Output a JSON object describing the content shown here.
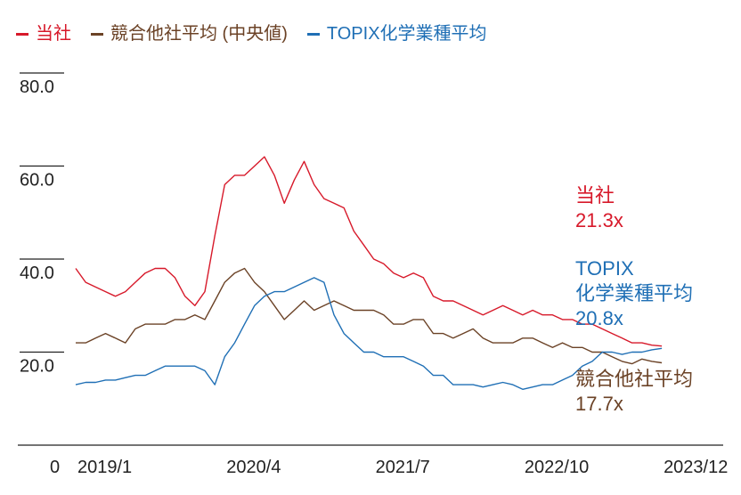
{
  "chart_data": {
    "type": "line",
    "legend": [
      {
        "name": "当社",
        "color": "#d7192a"
      },
      {
        "name": "競合他社平均 (中央値)",
        "color": "#6b4226"
      },
      {
        "name": "TOPIX化学業種平均",
        "color": "#1f6fb5"
      }
    ],
    "x_ticks": [
      "2019/1",
      "2020/4",
      "2021/7",
      "2022/10",
      "2023/12"
    ],
    "x_range": [
      "2019/1",
      "2024/6"
    ],
    "y_ticks": [
      "80.0",
      "60.0",
      "40.0",
      "20.0"
    ],
    "y_zero_label": "0",
    "ylim": [
      0,
      80
    ],
    "series": [
      {
        "name": "当社",
        "color": "#d7192a",
        "points": [
          [
            "2019-01",
            38
          ],
          [
            "2019-02",
            35
          ],
          [
            "2019-03",
            34
          ],
          [
            "2019-04",
            33
          ],
          [
            "2019-05",
            32
          ],
          [
            "2019-06",
            33
          ],
          [
            "2019-07",
            35
          ],
          [
            "2019-08",
            37
          ],
          [
            "2019-09",
            38
          ],
          [
            "2019-10",
            38
          ],
          [
            "2019-11",
            36
          ],
          [
            "2019-12",
            32
          ],
          [
            "2020-01",
            30
          ],
          [
            "2020-02",
            33
          ],
          [
            "2020-03",
            45
          ],
          [
            "2020-04",
            56
          ],
          [
            "2020-05",
            58
          ],
          [
            "2020-06",
            58
          ],
          [
            "2020-07",
            60
          ],
          [
            "2020-08",
            62
          ],
          [
            "2020-09",
            58
          ],
          [
            "2020-10",
            52
          ],
          [
            "2020-11",
            57
          ],
          [
            "2020-12",
            61
          ],
          [
            "2021-01",
            56
          ],
          [
            "2021-02",
            53
          ],
          [
            "2021-03",
            52
          ],
          [
            "2021-04",
            51
          ],
          [
            "2021-05",
            46
          ],
          [
            "2021-06",
            43
          ],
          [
            "2021-07",
            40
          ],
          [
            "2021-08",
            39
          ],
          [
            "2021-09",
            37
          ],
          [
            "2021-10",
            36
          ],
          [
            "2021-11",
            37
          ],
          [
            "2021-12",
            36
          ],
          [
            "2022-01",
            32
          ],
          [
            "2022-02",
            31
          ],
          [
            "2022-03",
            31
          ],
          [
            "2022-04",
            30
          ],
          [
            "2022-05",
            29
          ],
          [
            "2022-06",
            28
          ],
          [
            "2022-07",
            29
          ],
          [
            "2022-08",
            30
          ],
          [
            "2022-09",
            29
          ],
          [
            "2022-10",
            28
          ],
          [
            "2022-11",
            29
          ],
          [
            "2022-12",
            28
          ],
          [
            "2023-01",
            28
          ],
          [
            "2023-02",
            27
          ],
          [
            "2023-03",
            27
          ],
          [
            "2023-04",
            26
          ],
          [
            "2023-05",
            26
          ],
          [
            "2023-06",
            25
          ],
          [
            "2023-07",
            24
          ],
          [
            "2023-08",
            23
          ],
          [
            "2023-09",
            22
          ],
          [
            "2023-10",
            22
          ],
          [
            "2023-11",
            21.5
          ],
          [
            "2023-12",
            21.3
          ]
        ]
      },
      {
        "name": "競合他社平均 (中央値)",
        "color": "#6b4226",
        "points": [
          [
            "2019-01",
            22
          ],
          [
            "2019-02",
            22
          ],
          [
            "2019-03",
            23
          ],
          [
            "2019-04",
            24
          ],
          [
            "2019-05",
            23
          ],
          [
            "2019-06",
            22
          ],
          [
            "2019-07",
            25
          ],
          [
            "2019-08",
            26
          ],
          [
            "2019-09",
            26
          ],
          [
            "2019-10",
            26
          ],
          [
            "2019-11",
            27
          ],
          [
            "2019-12",
            27
          ],
          [
            "2020-01",
            28
          ],
          [
            "2020-02",
            27
          ],
          [
            "2020-03",
            31
          ],
          [
            "2020-04",
            35
          ],
          [
            "2020-05",
            37
          ],
          [
            "2020-06",
            38
          ],
          [
            "2020-07",
            35
          ],
          [
            "2020-08",
            33
          ],
          [
            "2020-09",
            30
          ],
          [
            "2020-10",
            27
          ],
          [
            "2020-11",
            29
          ],
          [
            "2020-12",
            31
          ],
          [
            "2021-01",
            29
          ],
          [
            "2021-02",
            30
          ],
          [
            "2021-03",
            31
          ],
          [
            "2021-04",
            30
          ],
          [
            "2021-05",
            29
          ],
          [
            "2021-06",
            29
          ],
          [
            "2021-07",
            29
          ],
          [
            "2021-08",
            28
          ],
          [
            "2021-09",
            26
          ],
          [
            "2021-10",
            26
          ],
          [
            "2021-11",
            27
          ],
          [
            "2021-12",
            27
          ],
          [
            "2022-01",
            24
          ],
          [
            "2022-02",
            24
          ],
          [
            "2022-03",
            23
          ],
          [
            "2022-04",
            24
          ],
          [
            "2022-05",
            25
          ],
          [
            "2022-06",
            23
          ],
          [
            "2022-07",
            22
          ],
          [
            "2022-08",
            22
          ],
          [
            "2022-09",
            22
          ],
          [
            "2022-10",
            23
          ],
          [
            "2022-11",
            23
          ],
          [
            "2022-12",
            22
          ],
          [
            "2023-01",
            21
          ],
          [
            "2023-02",
            22
          ],
          [
            "2023-03",
            21
          ],
          [
            "2023-04",
            21
          ],
          [
            "2023-05",
            20
          ],
          [
            "2023-06",
            20
          ],
          [
            "2023-07",
            19
          ],
          [
            "2023-08",
            18
          ],
          [
            "2023-09",
            17.5
          ],
          [
            "2023-10",
            18.5
          ],
          [
            "2023-11",
            18
          ],
          [
            "2023-12",
            17.7
          ]
        ]
      },
      {
        "name": "TOPIX化学業種平均",
        "color": "#1f6fb5",
        "points": [
          [
            "2019-01",
            13
          ],
          [
            "2019-02",
            13.5
          ],
          [
            "2019-03",
            13.5
          ],
          [
            "2019-04",
            14
          ],
          [
            "2019-05",
            14
          ],
          [
            "2019-06",
            14.5
          ],
          [
            "2019-07",
            15
          ],
          [
            "2019-08",
            15
          ],
          [
            "2019-09",
            16
          ],
          [
            "2019-10",
            17
          ],
          [
            "2019-11",
            17
          ],
          [
            "2019-12",
            17
          ],
          [
            "2020-01",
            17
          ],
          [
            "2020-02",
            16
          ],
          [
            "2020-03",
            13
          ],
          [
            "2020-04",
            19
          ],
          [
            "2020-05",
            22
          ],
          [
            "2020-06",
            26
          ],
          [
            "2020-07",
            30
          ],
          [
            "2020-08",
            32
          ],
          [
            "2020-09",
            33
          ],
          [
            "2020-10",
            33
          ],
          [
            "2020-11",
            34
          ],
          [
            "2020-12",
            35
          ],
          [
            "2021-01",
            36
          ],
          [
            "2021-02",
            35
          ],
          [
            "2021-03",
            28
          ],
          [
            "2021-04",
            24
          ],
          [
            "2021-05",
            22
          ],
          [
            "2021-06",
            20
          ],
          [
            "2021-07",
            20
          ],
          [
            "2021-08",
            19
          ],
          [
            "2021-09",
            19
          ],
          [
            "2021-10",
            19
          ],
          [
            "2021-11",
            18
          ],
          [
            "2021-12",
            17
          ],
          [
            "2022-01",
            15
          ],
          [
            "2022-02",
            15
          ],
          [
            "2022-03",
            13
          ],
          [
            "2022-04",
            13
          ],
          [
            "2022-05",
            13
          ],
          [
            "2022-06",
            12.5
          ],
          [
            "2022-07",
            13
          ],
          [
            "2022-08",
            13.5
          ],
          [
            "2022-09",
            13
          ],
          [
            "2022-10",
            12
          ],
          [
            "2022-11",
            12.5
          ],
          [
            "2022-12",
            13
          ],
          [
            "2023-01",
            13
          ],
          [
            "2023-02",
            14
          ],
          [
            "2023-03",
            15
          ],
          [
            "2023-04",
            17
          ],
          [
            "2023-05",
            18
          ],
          [
            "2023-06",
            20
          ],
          [
            "2023-07",
            20
          ],
          [
            "2023-08",
            19.5
          ],
          [
            "2023-09",
            20
          ],
          [
            "2023-10",
            20
          ],
          [
            "2023-11",
            20.5
          ],
          [
            "2023-12",
            20.8
          ]
        ]
      }
    ],
    "end_labels": [
      {
        "name": "当社",
        "value": "21.3x",
        "color": "#d7192a"
      },
      {
        "name_lines": [
          "TOPIX",
          "化学業種平均"
        ],
        "value": "20.8x",
        "color": "#1f6fb5"
      },
      {
        "name": "競合他社平均",
        "value": "17.7x",
        "color": "#6b4226"
      }
    ]
  }
}
